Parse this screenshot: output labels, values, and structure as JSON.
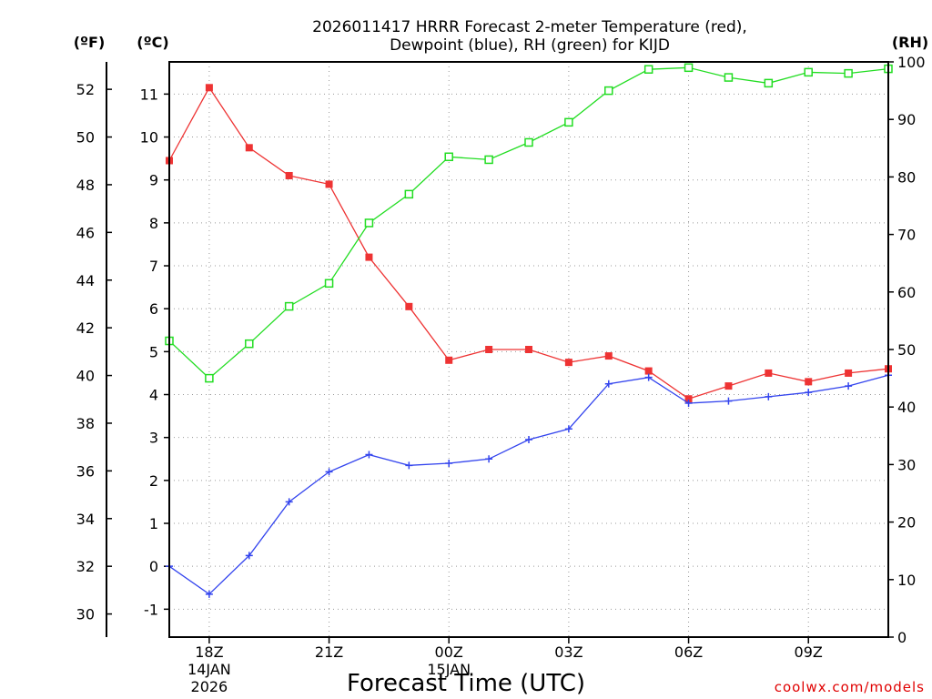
{
  "chart_data": {
    "type": "line",
    "title_lines": [
      "2026011417 HRRR Forecast 2-meter Temperature (red),",
      "Dewpoint (blue), RH (green) for KIJD"
    ],
    "units": {
      "fahrenheit": "(ºF)",
      "celsius": "(ºC)",
      "rh": "(RH)"
    },
    "xlabel": "Forecast Time (UTC)",
    "credit": "coolwx.com/models",
    "hours": [
      0,
      1,
      2,
      3,
      4,
      5,
      6,
      7,
      8,
      9,
      10,
      11,
      12,
      13,
      14,
      15,
      16,
      17,
      18
    ],
    "x_range": [
      0,
      18
    ],
    "x_ticks": [
      {
        "hour": 1,
        "lines": [
          "18Z",
          "14JAN",
          "2026"
        ]
      },
      {
        "hour": 4,
        "lines": [
          "21Z"
        ]
      },
      {
        "hour": 7,
        "lines": [
          "00Z",
          "15JAN"
        ]
      },
      {
        "hour": 10,
        "lines": [
          "03Z"
        ]
      },
      {
        "hour": 13,
        "lines": [
          "06Z"
        ]
      },
      {
        "hour": 16,
        "lines": [
          "09Z"
        ]
      }
    ],
    "y_celsius": {
      "range": [
        -1.65,
        11.75
      ],
      "ticks": [
        "-1",
        "0",
        "1",
        "2",
        "3",
        "4",
        "5",
        "6",
        "7",
        "8",
        "9",
        "10",
        "11"
      ]
    },
    "y_fahrenheit": {
      "ticks": [
        "30",
        "32",
        "34",
        "36",
        "38",
        "40",
        "42",
        "44",
        "46",
        "48",
        "50",
        "52"
      ]
    },
    "y_rh": {
      "range": [
        0,
        100
      ],
      "ticks": [
        "0",
        "10",
        "20",
        "30",
        "40",
        "50",
        "60",
        "70",
        "80",
        "90",
        "100"
      ]
    },
    "series": [
      {
        "name": "Temperature",
        "unit": "C",
        "color": "#ee3333",
        "marker": "filled-square",
        "values": [
          9.45,
          11.15,
          9.75,
          9.1,
          8.9,
          7.2,
          6.05,
          4.8,
          5.05,
          5.05,
          4.75,
          4.9,
          4.55,
          3.9,
          4.2,
          4.5,
          4.3,
          4.5,
          4.6
        ]
      },
      {
        "name": "Dewpoint",
        "unit": "C",
        "color": "#3344ee",
        "marker": "plus",
        "values": [
          0.0,
          -0.65,
          0.25,
          1.5,
          2.2,
          2.6,
          2.35,
          2.4,
          2.5,
          2.95,
          3.2,
          4.25,
          4.4,
          3.8,
          3.85,
          3.95,
          4.05,
          4.2,
          4.45
        ]
      },
      {
        "name": "RH",
        "unit": "%",
        "color": "#22dd22",
        "marker": "open-square",
        "values": [
          51.5,
          45.0,
          51.0,
          57.5,
          61.5,
          72.0,
          77.0,
          83.5,
          83.0,
          86.0,
          89.5,
          95.0,
          98.7,
          99.0,
          97.3,
          96.3,
          98.2,
          98.0,
          98.8
        ]
      }
    ]
  }
}
